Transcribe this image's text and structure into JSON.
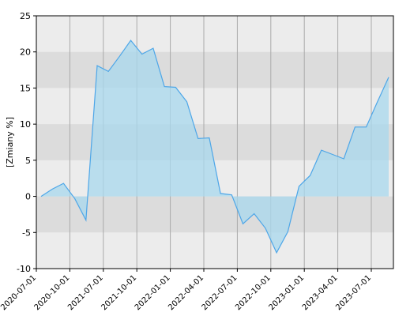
{
  "chart_data": {
    "type": "area",
    "y_label": "[Zmiany %]",
    "x_labels": [
      "2020-07-01",
      "2020-10-01",
      "2021-07-01",
      "2021-10-01",
      "2022-01-01",
      "2022-04-01",
      "2022-07-01",
      "2022-10-01",
      "2023-01-01",
      "2023-04-01",
      "2023-07-01"
    ],
    "values": [
      0,
      1.0,
      1.8,
      -0.3,
      -3.3,
      18.1,
      17.3,
      19.4,
      21.6,
      19.7,
      20.5,
      15.2,
      15.1,
      13.1,
      8.0,
      8.1,
      0.4,
      0.2,
      -3.8,
      -2.4,
      -4.4,
      -7.8,
      -4.9,
      1.4,
      2.9,
      6.4,
      5.8,
      5.2,
      9.6,
      9.6,
      13.1,
      16.5
    ],
    "color": "#4da6e8",
    "fill": "#a8d8ee",
    "ylim": [
      -10,
      25
    ],
    "yticks": [
      -10,
      -5,
      0,
      5,
      10,
      15,
      20,
      25
    ]
  }
}
